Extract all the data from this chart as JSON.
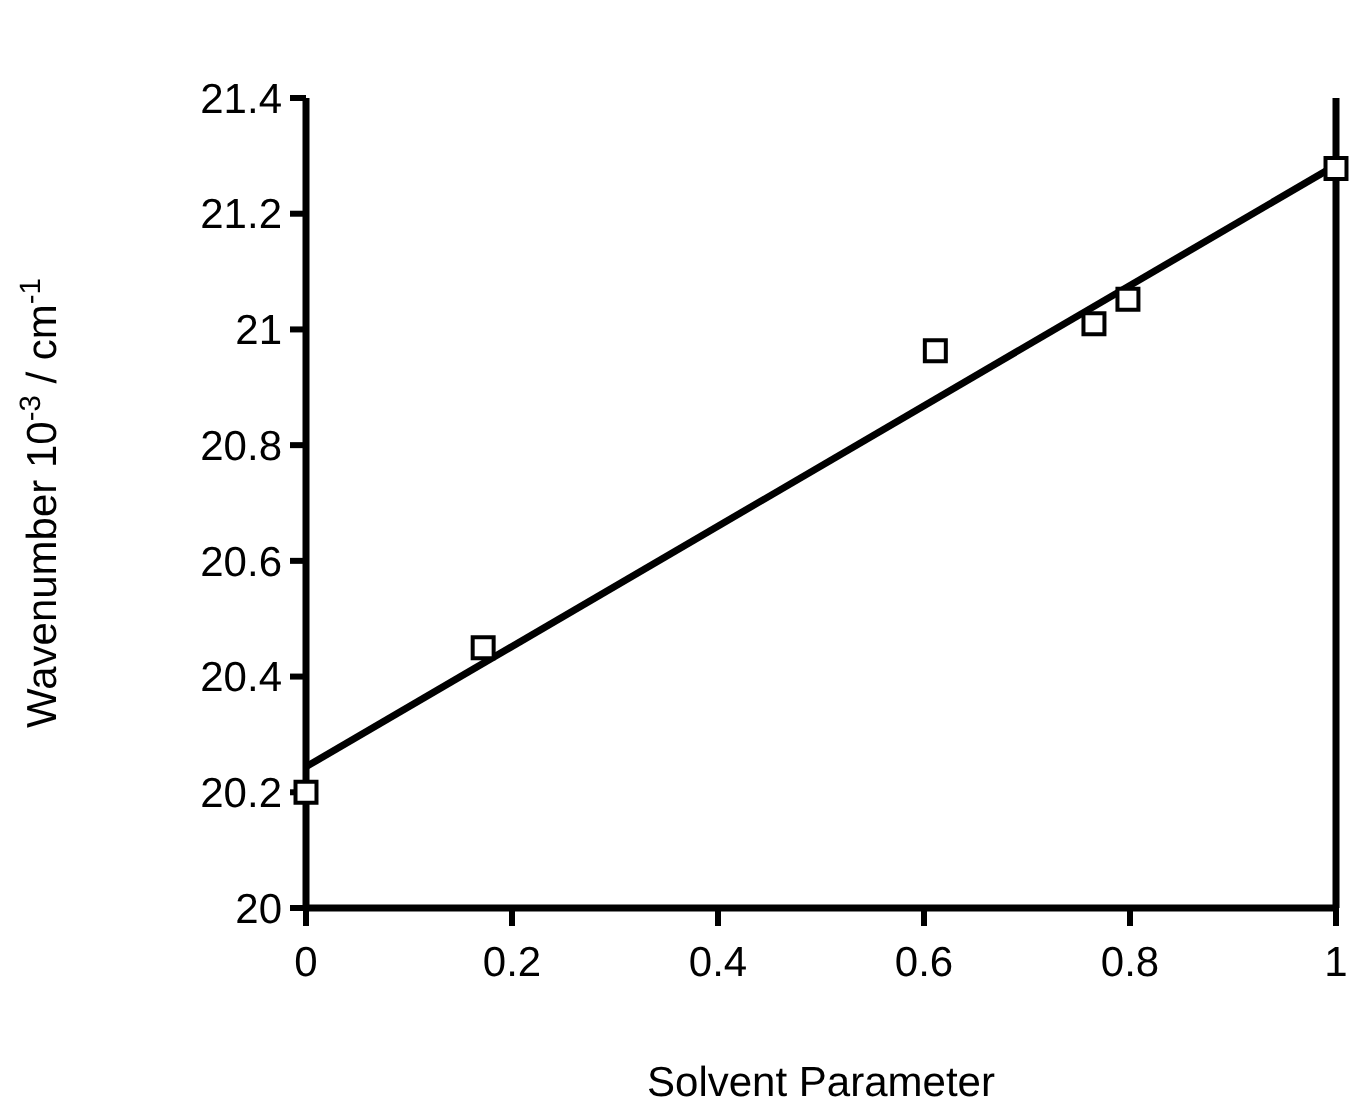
{
  "chart_data": {
    "type": "scatter",
    "xlabel": "Solvent Parameter",
    "ylabel": "Wavenumber 10$^{-3}$ / cm$^{-1}$",
    "marker": "square",
    "grid": false,
    "xlim": [
      0,
      1
    ],
    "xticks": [
      0,
      0.2,
      0.4,
      0.6,
      0.8,
      1
    ],
    "ylim": [
      20,
      21.4
    ],
    "yticks": [
      20,
      20.2,
      20.4,
      20.6,
      20.8,
      21,
      21.2,
      21.4
    ],
    "series": [
      {
        "color": "#000000",
        "x": [
          0,
          0.172,
          0.611,
          0.765,
          0.798,
          1
        ],
        "values": [
          20.2,
          20.45,
          20.963,
          21.01,
          21.052,
          21.278
        ]
      },
      {
        "type": "line",
        "color": "#000000",
        "marker": "none",
        "line_style": "solid",
        "x": [
          0,
          1
        ],
        "values": [
          20.244,
          21.284
        ]
      }
    ]
  }
}
